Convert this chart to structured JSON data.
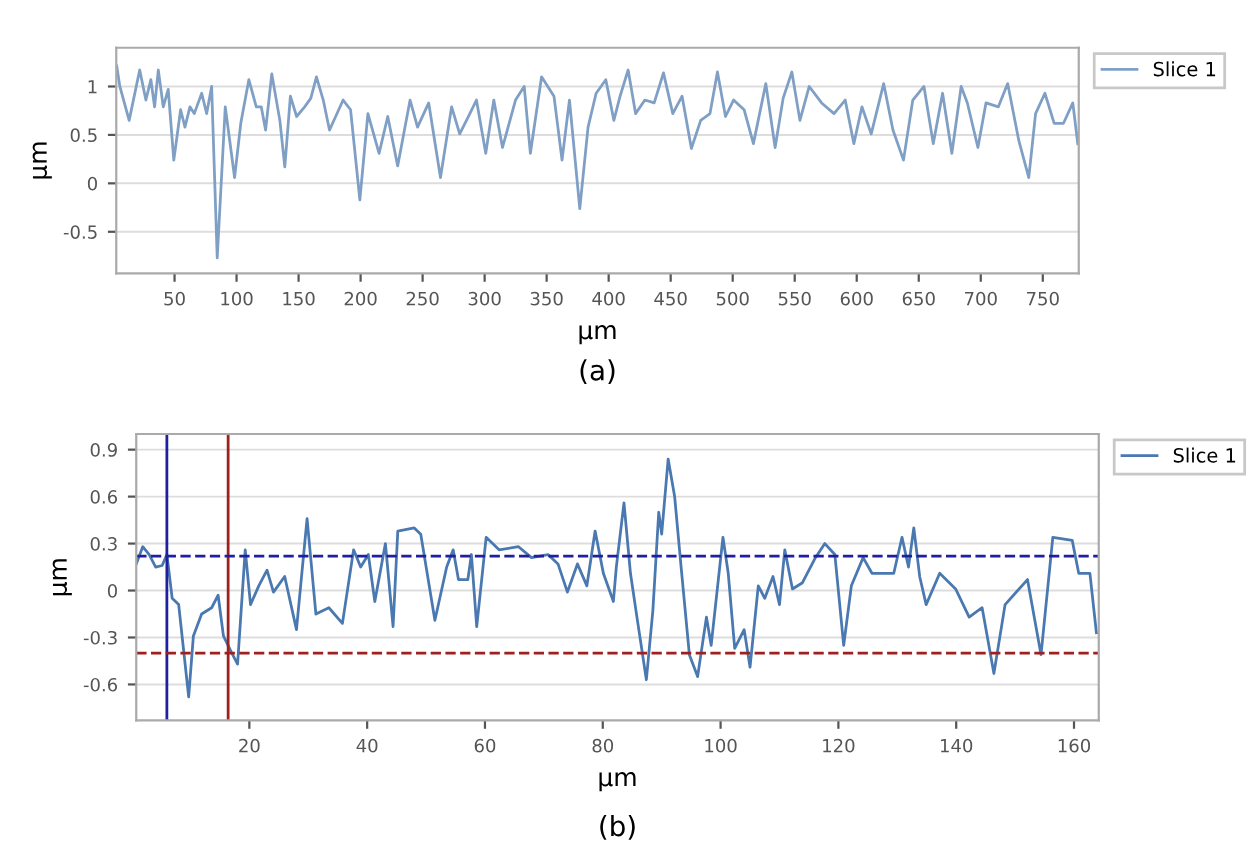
{
  "chart_data": [
    {
      "type": "line",
      "xlabel": "µm",
      "ylabel": "µm",
      "grid": "y",
      "legend": "top right",
      "annotations": [
        "(a)"
      ],
      "xlim": [
        3,
        779
      ],
      "ylim": [
        -0.93,
        1.4
      ],
      "xticks": [
        50,
        100,
        150,
        200,
        250,
        300,
        350,
        400,
        450,
        500,
        550,
        600,
        650,
        700,
        750
      ],
      "yticks": [
        -0.5,
        0,
        0.5,
        1
      ],
      "x": [
        3.4,
        5.9,
        13.4,
        21.9,
        26.9,
        30.9,
        33.9,
        36.9,
        40.9,
        44.9,
        49.4,
        54.9,
        58.4,
        62.4,
        65.9,
        71.9,
        75.9,
        79.9,
        84.4,
        90.9,
        98.4,
        103.4,
        109.9,
        115.9,
        119.9,
        123.4,
        128.4,
        134.9,
        138.9,
        143.4,
        148.4,
        154.9,
        159.9,
        164.4,
        169.9,
        174.9,
        179.9,
        185.9,
        191.9,
        199.4,
        205.9,
        214.9,
        221.9,
        229.9,
        239.9,
        245.9,
        254.9,
        264.4,
        273.4,
        279.9,
        286.9,
        293.4,
        300.9,
        307.4,
        314.4,
        324.9,
        331.9,
        336.9,
        345.9,
        355.9,
        362.4,
        368.4,
        376.7,
        383.4,
        389.9,
        397.7,
        404.2,
        409.2,
        415.7,
        421.7,
        429.2,
        436.7,
        444.2,
        451.7,
        459.2,
        466.7,
        474.2,
        481.7,
        487.7,
        494.2,
        500.7,
        509.2,
        516.7,
        526.7,
        534.2,
        540.7,
        547.7,
        554.2,
        561.7,
        571.7,
        581.7,
        590.7,
        597.7,
        604.2,
        611.7,
        621.7,
        629.2,
        637.7,
        645.2,
        654.2,
        661.7,
        669.2,
        676.7,
        684.2,
        689.2,
        697.7,
        704.2,
        714.2,
        721.7,
        730.7,
        738.7,
        744.2,
        751.7,
        759.2,
        766.7,
        774.2,
        778.2
      ],
      "series": [
        {
          "name": "Slice 1",
          "color": "#7f9fc4",
          "values": [
            1.21,
            1.0,
            0.65,
            1.17,
            0.86,
            1.07,
            0.79,
            1.17,
            0.79,
            0.97,
            0.24,
            0.76,
            0.58,
            0.79,
            0.72,
            0.93,
            0.72,
            1.0,
            -0.77,
            0.79,
            0.06,
            0.62,
            1.07,
            0.79,
            0.79,
            0.55,
            1.13,
            0.65,
            0.17,
            0.9,
            0.69,
            0.79,
            0.88,
            1.1,
            0.86,
            0.55,
            0.69,
            0.86,
            0.76,
            -0.17,
            0.72,
            0.31,
            0.69,
            0.18,
            0.86,
            0.58,
            0.83,
            0.06,
            0.79,
            0.51,
            0.69,
            0.86,
            0.31,
            0.86,
            0.37,
            0.86,
            1.0,
            0.31,
            1.1,
            0.9,
            0.24,
            0.86,
            -0.26,
            0.58,
            0.93,
            1.07,
            0.65,
            0.9,
            1.17,
            0.72,
            0.86,
            0.83,
            1.14,
            0.72,
            0.9,
            0.36,
            0.65,
            0.72,
            1.15,
            0.69,
            0.86,
            0.76,
            0.41,
            1.03,
            0.37,
            0.88,
            1.15,
            0.65,
            1.0,
            0.83,
            0.72,
            0.86,
            0.41,
            0.79,
            0.51,
            1.03,
            0.55,
            0.24,
            0.86,
            1.0,
            0.41,
            0.93,
            0.31,
            1.0,
            0.83,
            0.37,
            0.83,
            0.79,
            1.03,
            0.44,
            0.06,
            0.72,
            0.93,
            0.62,
            0.62,
            0.83,
            0.41
          ]
        }
      ]
    },
    {
      "type": "line",
      "xlabel": "µm",
      "ylabel": "µm",
      "grid": "y",
      "legend": "top right",
      "annotations": [
        "(b)"
      ],
      "xlim": [
        0.8,
        164.2
      ],
      "ylim": [
        -0.83,
        1.0
      ],
      "xticks": [
        20,
        40,
        60,
        80,
        100,
        120,
        140,
        160
      ],
      "yticks": [
        -0.6,
        -0.3,
        0,
        0.3,
        0.6,
        0.9
      ],
      "ref_lines": [
        {
          "axis": "x",
          "value": 6,
          "color": "#1f1fa0",
          "line_style": "solid"
        },
        {
          "axis": "x",
          "value": 16.4,
          "color": "#a01f1f",
          "line_style": "solid"
        },
        {
          "axis": "y",
          "value": 0.22,
          "color": "#1f1fa0",
          "line_style": "dashed"
        },
        {
          "axis": "y",
          "value": -0.4,
          "color": "#a01f1f",
          "line_style": "dashed"
        }
      ],
      "x": [
        0.8,
        1.9,
        3,
        4.1,
        5.2,
        6,
        6.9,
        8,
        9.7,
        10.5,
        11.9,
        13.6,
        14.7,
        15.6,
        16.9,
        18,
        19.3,
        20.2,
        21.6,
        23,
        24.1,
        26,
        28,
        29.8,
        31.3,
        33.5,
        35.8,
        37.7,
        38.9,
        40.2,
        41.3,
        43.1,
        44.4,
        45.2,
        48,
        49.1,
        51.5,
        53.5,
        54.6,
        55.5,
        57.1,
        57.7,
        58.6,
        60.2,
        62.4,
        65.7,
        67.9,
        70.7,
        72.4,
        74,
        75.7,
        77.3,
        78.7,
        80.1,
        81.8,
        82.3,
        83.6,
        84.7,
        85.8,
        87.4,
        88.5,
        89.5,
        90.0,
        91.1,
        92.2,
        93.3,
        94.7,
        96.1,
        97.6,
        98.4,
        100.4,
        101.3,
        102.4,
        104.0,
        105,
        106.4,
        107.5,
        108.9,
        110,
        110.9,
        112.2,
        113.9,
        116.1,
        117.7,
        119.4,
        120.9,
        122.2,
        124.2,
        125.7,
        129.4,
        130.8,
        131.9,
        132.8,
        133.8,
        134.9,
        137.2,
        139.9,
        142.2,
        144.4,
        146.4,
        148.3,
        152.1,
        154.4,
        156.4,
        159.7,
        160.8,
        162.7,
        163.8
      ],
      "series": [
        {
          "name": "Slice 1",
          "color": "#4a78b0",
          "values": [
            0.17,
            0.28,
            0.23,
            0.15,
            0.16,
            0.23,
            -0.05,
            -0.09,
            -0.68,
            -0.29,
            -0.15,
            -0.11,
            -0.03,
            -0.29,
            -0.39,
            -0.47,
            0.26,
            -0.09,
            0.03,
            0.13,
            -0.01,
            0.09,
            -0.25,
            0.46,
            -0.15,
            -0.11,
            -0.21,
            0.26,
            0.15,
            0.23,
            -0.07,
            0.3,
            -0.23,
            0.38,
            0.4,
            0.36,
            -0.19,
            0.15,
            0.26,
            0.07,
            0.07,
            0.23,
            -0.23,
            0.34,
            0.26,
            0.28,
            0.21,
            0.23,
            0.17,
            -0.01,
            0.17,
            0.03,
            0.38,
            0.11,
            -0.07,
            0.15,
            0.56,
            0.11,
            -0.17,
            -0.57,
            -0.13,
            0.5,
            0.36,
            0.84,
            0.6,
            0.15,
            -0.41,
            -0.55,
            -0.17,
            -0.35,
            0.34,
            0.11,
            -0.37,
            -0.25,
            -0.49,
            0.03,
            -0.05,
            0.09,
            -0.09,
            0.26,
            0.01,
            0.05,
            0.21,
            0.3,
            0.23,
            -0.35,
            0.03,
            0.21,
            0.11,
            0.11,
            0.34,
            0.15,
            0.4,
            0.09,
            -0.09,
            0.11,
            0.01,
            -0.17,
            -0.11,
            -0.53,
            -0.09,
            0.07,
            -0.41,
            0.34,
            0.32,
            0.11,
            0.11,
            -0.27
          ]
        }
      ]
    }
  ]
}
